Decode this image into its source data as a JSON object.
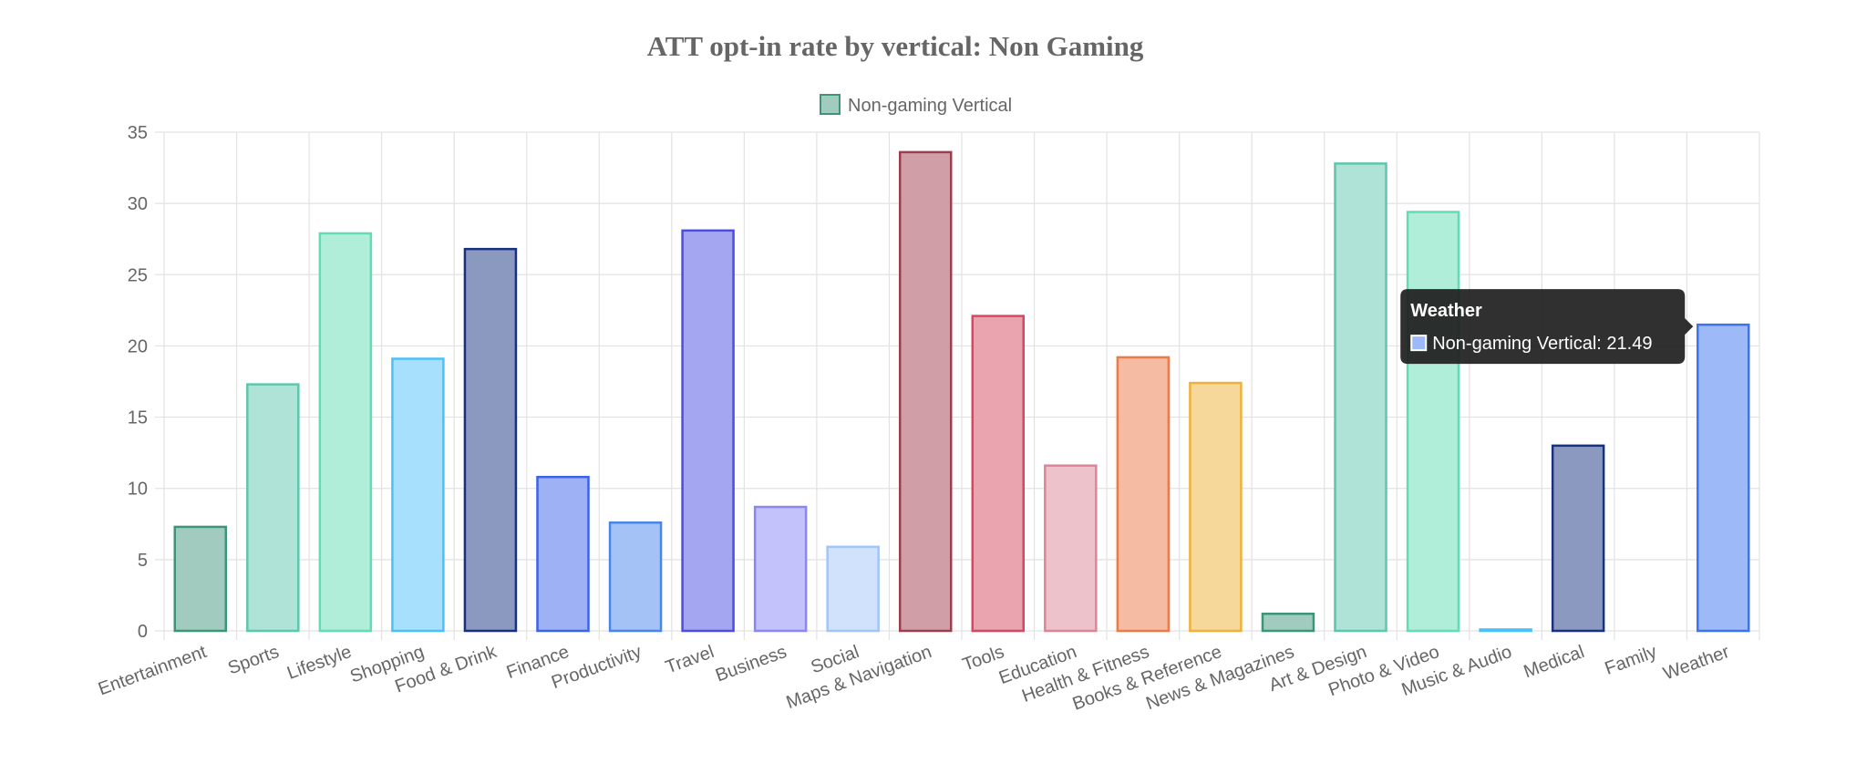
{
  "chart_data": {
    "type": "bar",
    "title": "ATT opt-in rate by vertical: Non Gaming",
    "xlabel": "",
    "ylabel": "",
    "ylim": [
      0,
      35
    ],
    "yticks": [
      0,
      5,
      10,
      15,
      20,
      25,
      30,
      35
    ],
    "grid": true,
    "legend": {
      "position": "top-center",
      "label": "Non-gaming Vertical"
    },
    "categories": [
      "Entertainment",
      "Sports",
      "Lifestyle",
      "Shopping",
      "Food & Drink",
      "Finance",
      "Productivity",
      "Travel",
      "Business",
      "Social",
      "Maps & Navigation",
      "Tools",
      "Education",
      "Health & Fitness",
      "Books & Reference",
      "News & Magazines",
      "Art & Design",
      "Photo & Video",
      "Music & Audio",
      "Medical",
      "Family",
      "Weather"
    ],
    "series": [
      {
        "name": "Non-gaming Vertical",
        "values": [
          7.3,
          17.3,
          27.9,
          19.1,
          26.8,
          10.8,
          7.6,
          28.1,
          8.7,
          5.9,
          33.6,
          22.1,
          11.6,
          19.2,
          17.4,
          1.2,
          32.8,
          29.4,
          0.1,
          13.0,
          0,
          21.49
        ],
        "fill_colors": [
          "#a2cbc0",
          "#afe3d8",
          "#b1eed9",
          "#a6e0fc",
          "#8b98c0",
          "#9db1f4",
          "#a4c2f6",
          "#a5a6f2",
          "#c3c2fb",
          "#d0e2fc",
          "#d09ea7",
          "#e9a4b0",
          "#eec2cb",
          "#f6bca3",
          "#f7d89b",
          "#a2cbc0",
          "#afe3d8",
          "#b1eed9",
          "#a6e0fc",
          "#8b98c0",
          "#9db1f4",
          "#9db9f8"
        ],
        "border_colors": [
          "#3d9578",
          "#5dc6ab",
          "#62ddb3",
          "#4cc0f9",
          "#17317f",
          "#3b63e9",
          "#4885ed",
          "#4b4de5",
          "#8887f5",
          "#a2c4f8",
          "#9b3f4e",
          "#d4495f",
          "#dd8597",
          "#ed7a48",
          "#efb13a",
          "#3d9578",
          "#5dc6ab",
          "#62ddb3",
          "#4cc0f9",
          "#17317f",
          "#3b63e9",
          "#3b73f1"
        ]
      }
    ],
    "tooltip": {
      "category_index": 21,
      "title": "Weather",
      "label": "Non-gaming Vertical: 21.49",
      "background": "#1e1e1e",
      "swatch_fill": "#9db9f8",
      "swatch_border": "#ffffff"
    }
  }
}
